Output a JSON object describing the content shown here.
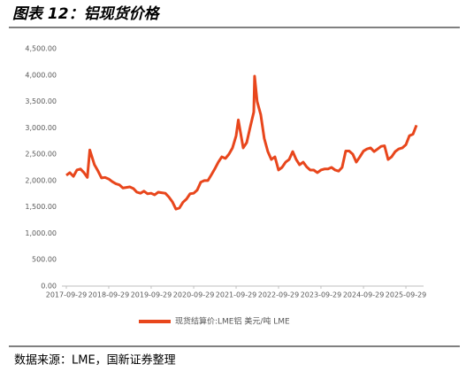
{
  "chart_data": {
    "type": "line",
    "title": "图表 12：铝现货价格",
    "source": "数据来源：LME，国新证券整理",
    "series": [
      {
        "name": "现货结算价:LME铝 美元/吨 LME",
        "color": "#e8461c",
        "x": [
          "2017-09-29",
          "2017-10-29",
          "2017-11-29",
          "2017-12-29",
          "2018-01-29",
          "2018-02-28",
          "2018-03-29",
          "2018-04-19",
          "2018-05-29",
          "2018-06-29",
          "2018-07-29",
          "2018-08-29",
          "2018-09-29",
          "2018-10-29",
          "2018-11-29",
          "2018-12-29",
          "2019-01-29",
          "2019-02-28",
          "2019-03-29",
          "2019-04-29",
          "2019-05-29",
          "2019-06-29",
          "2019-07-29",
          "2019-08-29",
          "2019-09-29",
          "2019-10-29",
          "2019-11-29",
          "2019-12-29",
          "2020-01-29",
          "2020-02-28",
          "2020-03-29",
          "2020-04-29",
          "2020-05-29",
          "2020-06-29",
          "2020-07-29",
          "2020-08-29",
          "2020-09-29",
          "2020-10-29",
          "2020-11-29",
          "2020-12-29",
          "2021-01-29",
          "2021-02-28",
          "2021-03-29",
          "2021-04-29",
          "2021-05-29",
          "2021-06-29",
          "2021-07-29",
          "2021-08-29",
          "2021-09-29",
          "2021-10-18",
          "2021-11-29",
          "2021-12-29",
          "2022-01-29",
          "2022-02-28",
          "2022-03-07",
          "2022-03-29",
          "2022-04-29",
          "2022-05-29",
          "2022-06-29",
          "2022-07-29",
          "2022-08-29",
          "2022-09-29",
          "2022-10-29",
          "2022-11-29",
          "2022-12-29",
          "2023-01-29",
          "2023-02-28",
          "2023-03-29",
          "2023-04-29",
          "2023-05-29",
          "2023-06-29",
          "2023-07-29",
          "2023-08-29",
          "2023-09-29",
          "2023-10-29",
          "2023-11-29",
          "2023-12-29",
          "2024-01-29",
          "2024-02-28",
          "2024-03-29",
          "2024-04-29",
          "2024-05-29",
          "2024-06-29",
          "2024-07-29",
          "2024-08-29",
          "2024-09-29",
          "2024-10-29",
          "2024-11-29",
          "2024-12-29",
          "2025-01-29",
          "2025-02-28",
          "2025-03-29",
          "2025-04-29",
          "2025-05-29",
          "2025-06-29",
          "2025-07-29",
          "2025-08-29",
          "2025-09-29",
          "2025-10-29",
          "2025-11-29",
          "2025-12-29"
        ],
        "values": [
          2100,
          2150,
          2080,
          2200,
          2220,
          2150,
          2060,
          2580,
          2300,
          2180,
          2050,
          2060,
          2030,
          1980,
          1940,
          1920,
          1860,
          1870,
          1880,
          1850,
          1780,
          1760,
          1800,
          1750,
          1760,
          1730,
          1780,
          1770,
          1760,
          1690,
          1600,
          1460,
          1480,
          1590,
          1650,
          1750,
          1760,
          1820,
          1970,
          2000,
          2000,
          2110,
          2220,
          2350,
          2450,
          2420,
          2500,
          2620,
          2850,
          3150,
          2620,
          2720,
          3020,
          3300,
          3980,
          3500,
          3250,
          2800,
          2550,
          2400,
          2450,
          2200,
          2250,
          2350,
          2400,
          2550,
          2400,
          2300,
          2350,
          2260,
          2200,
          2200,
          2150,
          2200,
          2220,
          2220,
          2250,
          2200,
          2180,
          2250,
          2560,
          2560,
          2500,
          2350,
          2450,
          2560,
          2600,
          2620,
          2550,
          2600,
          2650,
          2660,
          2400,
          2450,
          2550,
          2600,
          2620,
          2680,
          2850,
          2880,
          3050
        ]
      }
    ],
    "xlim": [
      "2017-09-29",
      "2025-12-29"
    ],
    "xticks": [
      "2017-09-29",
      "2018-09-29",
      "2019-09-29",
      "2020-09-29",
      "2021-09-29",
      "2022-09-29",
      "2023-09-29",
      "2024-09-29",
      "2025-09-29"
    ],
    "ylim": [
      0,
      4500
    ],
    "yticks": [
      {
        "value": 0,
        "label": "0.00"
      },
      {
        "value": 500,
        "label": "500.00"
      },
      {
        "value": 1000,
        "label": "1,000.00"
      },
      {
        "value": 1500,
        "label": "1,500.00"
      },
      {
        "value": 2000,
        "label": "2,000.00"
      },
      {
        "value": 2500,
        "label": "2,500.00"
      },
      {
        "value": 3000,
        "label": "3,000.00"
      },
      {
        "value": 3500,
        "label": "3,500.00"
      },
      {
        "value": 4000,
        "label": "4,000.00"
      },
      {
        "value": 4500,
        "label": "4,500.00"
      }
    ],
    "legend": "bottom"
  }
}
